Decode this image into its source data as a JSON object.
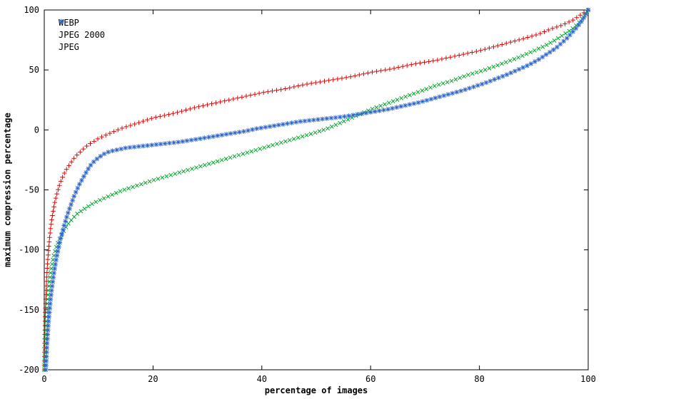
{
  "chart_data": {
    "type": "scatter",
    "title": "",
    "xlabel": "percentage of images",
    "ylabel": "maximum compression percentage",
    "xlim": [
      0,
      100
    ],
    "ylim": [
      -200,
      100
    ],
    "xticks": [
      "0",
      "20",
      "40",
      "60",
      "80",
      "100"
    ],
    "yticks": [
      "100",
      "50",
      "0",
      "-50",
      "-100",
      "-150",
      "-200"
    ],
    "grid": false,
    "legend_position": "top-left",
    "series": [
      {
        "name": "WEBP",
        "marker": "plus",
        "color": "#dd0606",
        "points": [
          [
            0,
            -200
          ],
          [
            0.05,
            -185
          ],
          [
            0.1,
            -172
          ],
          [
            0.15,
            -162
          ],
          [
            0.2,
            -153
          ],
          [
            0.3,
            -139
          ],
          [
            0.4,
            -128
          ],
          [
            0.5,
            -119
          ],
          [
            0.65,
            -108
          ],
          [
            0.8,
            -99
          ],
          [
            1.0,
            -89
          ],
          [
            1.2,
            -81
          ],
          [
            1.4,
            -74
          ],
          [
            1.7,
            -66
          ],
          [
            2.0,
            -59
          ],
          [
            2.4,
            -52
          ],
          [
            2.8,
            -46
          ],
          [
            3.2,
            -41
          ],
          [
            3.7,
            -36
          ],
          [
            4.2,
            -32
          ],
          [
            4.8,
            -28
          ],
          [
            5.4,
            -24
          ],
          [
            6.0,
            -21
          ],
          [
            6.7,
            -18
          ],
          [
            7.4,
            -15
          ],
          [
            8.2,
            -12
          ],
          [
            9.0,
            -10
          ],
          [
            10,
            -7
          ],
          [
            11,
            -5
          ],
          [
            12,
            -3
          ],
          [
            13,
            -1
          ],
          [
            14,
            1
          ],
          [
            16,
            4
          ],
          [
            18,
            7
          ],
          [
            20,
            10
          ],
          [
            24,
            14
          ],
          [
            28,
            19
          ],
          [
            32,
            23
          ],
          [
            36,
            27
          ],
          [
            40,
            31
          ],
          [
            44,
            34
          ],
          [
            48,
            38
          ],
          [
            52,
            41
          ],
          [
            56,
            44
          ],
          [
            60,
            48
          ],
          [
            64,
            51
          ],
          [
            68,
            55
          ],
          [
            72,
            58
          ],
          [
            76,
            62
          ],
          [
            80,
            66
          ],
          [
            84,
            71
          ],
          [
            88,
            76
          ],
          [
            91,
            80
          ],
          [
            93,
            84
          ],
          [
            95,
            87
          ],
          [
            96,
            89
          ],
          [
            97,
            91
          ],
          [
            98,
            94
          ],
          [
            99,
            97
          ],
          [
            100,
            100
          ]
        ]
      },
      {
        "name": "JPEG 2000",
        "marker": "cross",
        "color": "#00a529",
        "points": [
          [
            0,
            -200
          ],
          [
            0.1,
            -186
          ],
          [
            0.2,
            -174
          ],
          [
            0.3,
            -164
          ],
          [
            0.4,
            -156
          ],
          [
            0.5,
            -149
          ],
          [
            0.65,
            -140
          ],
          [
            0.8,
            -133
          ],
          [
            1.0,
            -125
          ],
          [
            1.2,
            -118
          ],
          [
            1.5,
            -110
          ],
          [
            1.8,
            -104
          ],
          [
            2.2,
            -98
          ],
          [
            2.6,
            -93
          ],
          [
            3.0,
            -89
          ],
          [
            3.5,
            -85
          ],
          [
            4.0,
            -81
          ],
          [
            4.6,
            -77
          ],
          [
            5.2,
            -74
          ],
          [
            6.0,
            -70
          ],
          [
            7.0,
            -67
          ],
          [
            8.0,
            -64
          ],
          [
            9.0,
            -61
          ],
          [
            10,
            -59
          ],
          [
            11,
            -57
          ],
          [
            12,
            -55
          ],
          [
            14,
            -51
          ],
          [
            16,
            -48
          ],
          [
            18,
            -45
          ],
          [
            20,
            -42
          ],
          [
            23,
            -38
          ],
          [
            26,
            -34
          ],
          [
            29,
            -30
          ],
          [
            32,
            -26
          ],
          [
            35,
            -22
          ],
          [
            38,
            -18
          ],
          [
            41,
            -14
          ],
          [
            44,
            -10
          ],
          [
            47,
            -6
          ],
          [
            50,
            -2
          ],
          [
            52,
            1
          ],
          [
            54,
            5
          ],
          [
            56,
            9
          ],
          [
            58,
            13
          ],
          [
            60,
            17
          ],
          [
            63,
            22
          ],
          [
            66,
            27
          ],
          [
            69,
            32
          ],
          [
            72,
            37
          ],
          [
            75,
            41
          ],
          [
            78,
            46
          ],
          [
            81,
            50
          ],
          [
            84,
            55
          ],
          [
            87,
            60
          ],
          [
            90,
            66
          ],
          [
            92,
            70
          ],
          [
            94,
            75
          ],
          [
            96,
            81
          ],
          [
            97,
            84
          ],
          [
            98,
            88
          ],
          [
            99,
            93
          ],
          [
            100,
            100
          ]
        ]
      },
      {
        "name": "JPEG",
        "marker": "star",
        "color": "#2f66d0",
        "points": [
          [
            0.3,
            -200
          ],
          [
            0.4,
            -190
          ],
          [
            0.5,
            -181
          ],
          [
            0.6,
            -173
          ],
          [
            0.7,
            -166
          ],
          [
            0.85,
            -157
          ],
          [
            1.0,
            -149
          ],
          [
            1.2,
            -140
          ],
          [
            1.4,
            -132
          ],
          [
            1.6,
            -125
          ],
          [
            1.9,
            -116
          ],
          [
            2.2,
            -108
          ],
          [
            2.5,
            -101
          ],
          [
            2.8,
            -95
          ],
          [
            3.1,
            -89
          ],
          [
            3.5,
            -82
          ],
          [
            3.9,
            -76
          ],
          [
            4.3,
            -70
          ],
          [
            4.7,
            -65
          ],
          [
            5.1,
            -60
          ],
          [
            5.5,
            -55
          ],
          [
            6.0,
            -50
          ],
          [
            6.5,
            -45
          ],
          [
            7.0,
            -41
          ],
          [
            7.5,
            -37
          ],
          [
            8.0,
            -33
          ],
          [
            8.6,
            -29
          ],
          [
            9.2,
            -26
          ],
          [
            10,
            -23
          ],
          [
            11,
            -20
          ],
          [
            12,
            -18
          ],
          [
            13,
            -17
          ],
          [
            14,
            -16
          ],
          [
            15,
            -15
          ],
          [
            17,
            -14
          ],
          [
            19,
            -13
          ],
          [
            21,
            -12
          ],
          [
            23,
            -11
          ],
          [
            25,
            -10
          ],
          [
            27,
            -8.5
          ],
          [
            29,
            -7
          ],
          [
            31,
            -5.5
          ],
          [
            33,
            -4
          ],
          [
            35,
            -2.5
          ],
          [
            37,
            -1
          ],
          [
            39,
            1
          ],
          [
            41,
            2.5
          ],
          [
            43,
            4
          ],
          [
            45,
            5.5
          ],
          [
            47,
            7
          ],
          [
            49,
            8
          ],
          [
            51,
            9
          ],
          [
            53,
            10
          ],
          [
            55,
            11
          ],
          [
            57,
            12.5
          ],
          [
            59,
            14
          ],
          [
            61,
            15.5
          ],
          [
            63,
            17
          ],
          [
            65,
            19
          ],
          [
            67,
            21
          ],
          [
            69,
            23
          ],
          [
            71,
            25.5
          ],
          [
            73,
            28
          ],
          [
            75,
            30.5
          ],
          [
            77,
            33
          ],
          [
            79,
            36
          ],
          [
            81,
            39
          ],
          [
            83,
            42.5
          ],
          [
            85,
            46
          ],
          [
            87,
            50
          ],
          [
            89,
            54
          ],
          [
            91,
            59
          ],
          [
            93,
            65
          ],
          [
            94,
            68
          ],
          [
            95,
            72
          ],
          [
            96,
            76
          ],
          [
            97,
            81
          ],
          [
            98,
            86
          ],
          [
            99,
            92
          ],
          [
            100,
            100
          ]
        ]
      }
    ]
  }
}
